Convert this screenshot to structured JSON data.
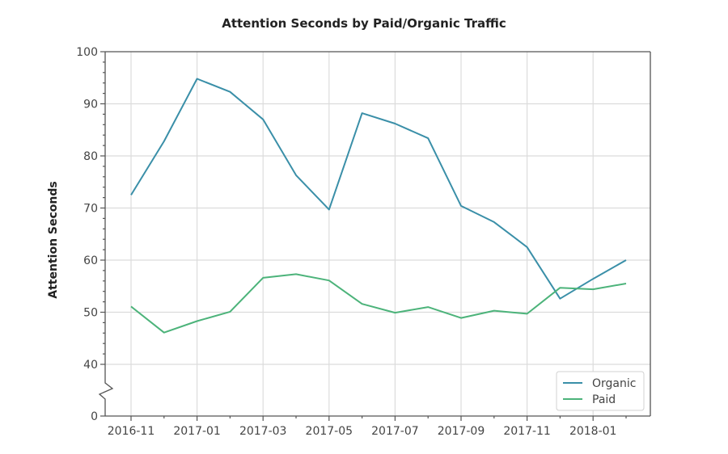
{
  "chart_data": {
    "type": "line",
    "title": "Attention Seconds by Paid/Organic Traffic",
    "xlabel": "",
    "ylabel": "Attention Seconds",
    "x": [
      "2016-11",
      "2016-12",
      "2017-01",
      "2017-02",
      "2017-03",
      "2017-04",
      "2017-05",
      "2017-06",
      "2017-07",
      "2017-08",
      "2017-09",
      "2017-10",
      "2017-11",
      "2017-12",
      "2018-01",
      "2018-02"
    ],
    "x_tick_labels": [
      "2016-11",
      "2017-01",
      "2017-03",
      "2017-05",
      "2017-07",
      "2017-09",
      "2017-11",
      "2018-01"
    ],
    "y_tick_labels": [
      "0",
      "40",
      "50",
      "60",
      "70",
      "80",
      "90",
      "100"
    ],
    "ylim": [
      0,
      100
    ],
    "y_axis_break": [
      0,
      40
    ],
    "grid": true,
    "legend_position": "bottom-right",
    "series": [
      {
        "name": "Organic",
        "color": "#3a8fa8",
        "values": [
          72.5,
          82.8,
          94.8,
          92.3,
          87.0,
          76.3,
          69.7,
          88.2,
          86.2,
          83.4,
          70.4,
          67.3,
          62.5,
          52.6,
          56.4,
          60.0
        ]
      },
      {
        "name": "Paid",
        "color": "#4cb37a",
        "values": [
          51.1,
          46.1,
          48.3,
          50.1,
          56.6,
          57.3,
          56.1,
          51.6,
          49.9,
          51.0,
          48.9,
          50.3,
          49.7,
          54.7,
          54.4,
          55.5
        ]
      }
    ]
  }
}
